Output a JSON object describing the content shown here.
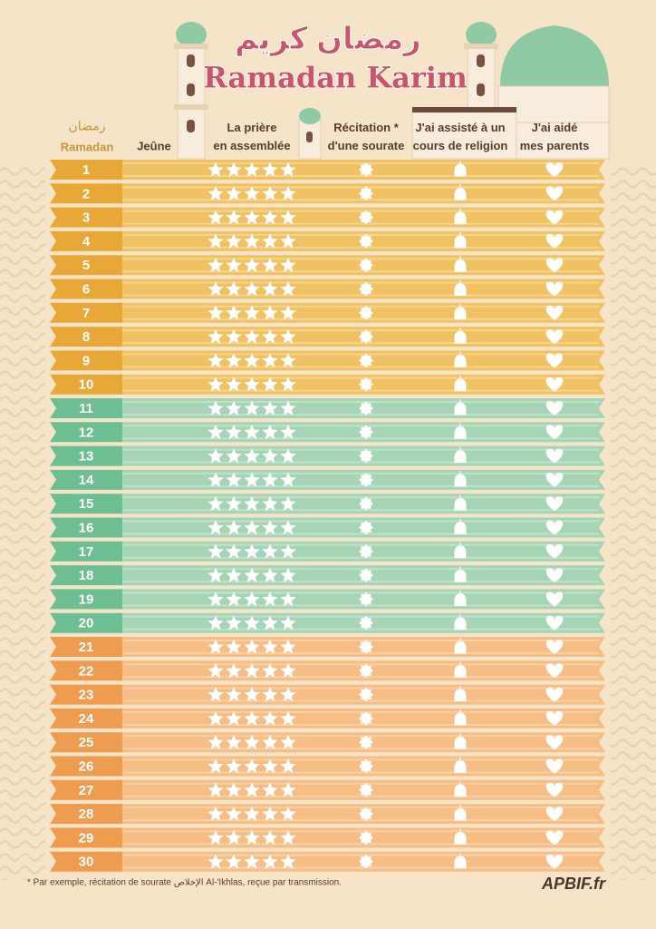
{
  "header": {
    "title_arabic": "رمضان كريم",
    "title": "Ramadan Karim"
  },
  "table": {
    "first_header": [
      "رمضان",
      "Ramadan"
    ],
    "headers": [
      "Jeûne",
      "La prière en assemblée",
      "Récitation * d'une sourate",
      "J'ai assisté à un cours de religion",
      "J'ai aidé mes parents"
    ],
    "groups": [
      {
        "days": [
          1,
          2,
          3,
          4,
          5,
          6,
          7,
          8,
          9,
          10
        ]
      },
      {
        "days": [
          11,
          12,
          13,
          14,
          15,
          16,
          17,
          18,
          19,
          20
        ]
      },
      {
        "days": [
          21,
          22,
          23,
          24,
          25,
          26,
          27,
          28,
          29,
          30
        ]
      }
    ]
  },
  "footer": {
    "note": "* Par exemple, récitation de sourate الإخلاص Al-'Ikhlas, reçue par transmission.",
    "brand": "APBIF.fr"
  }
}
